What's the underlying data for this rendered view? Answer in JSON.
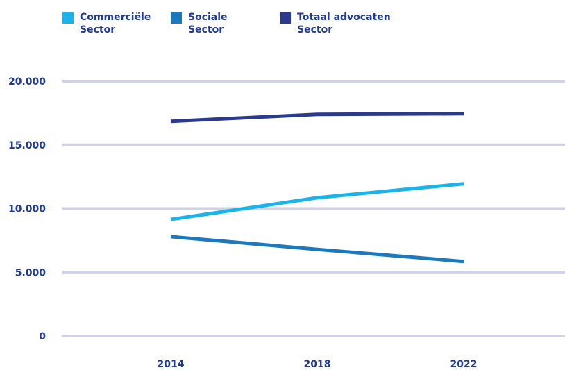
{
  "chart_data": {
    "type": "line",
    "categories": [
      "2014",
      "2018",
      "2022"
    ],
    "x_ticks": [
      "2014",
      "2018",
      "2022"
    ],
    "y_ticks": [
      "0",
      "5.000",
      "10.000",
      "15.000",
      "20.000"
    ],
    "y_tick_values": [
      0,
      5000,
      10000,
      15000,
      20000
    ],
    "ylim": [
      0,
      20000
    ],
    "grid": true,
    "legend_position": "top-left",
    "series": [
      {
        "name": "Commerciële Sector",
        "color": "#1ab4ea",
        "values": [
          9150,
          10850,
          11950
        ]
      },
      {
        "name": "Sociale Sector",
        "color": "#1c79bc",
        "values": [
          7800,
          6800,
          5850
        ]
      },
      {
        "name": "Totaal advocaten Sector",
        "color": "#2b3a8c",
        "values": [
          16850,
          17400,
          17450
        ]
      }
    ],
    "gridline_color": "#d2d2e6",
    "label_color": "#1f3a93"
  }
}
